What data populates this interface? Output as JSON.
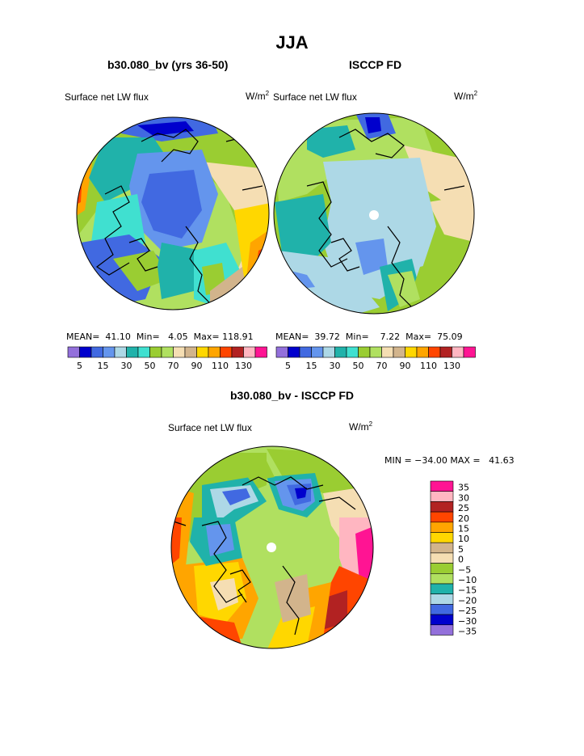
{
  "title": "JJA",
  "panels": [
    {
      "subtitle": "b30.080_bv (yrs 36-50)",
      "left_label": "Surface net LW flux",
      "units_base": "W/m",
      "units_exp": "2",
      "stats": {
        "mean_label": "MEAN=",
        "mean": "41.10",
        "min_label": "Min=",
        "min": "4.05",
        "max_label": "Max=",
        "max": "118.91"
      }
    },
    {
      "subtitle": "ISCCP FD",
      "left_label": "Surface net LW flux",
      "units_base": "W/m",
      "units_exp": "2",
      "stats": {
        "mean_label": "MEAN=",
        "mean": "39.72",
        "min_label": "Min=",
        "min": "7.22",
        "max_label": "Max=",
        "max": "75.09"
      }
    }
  ],
  "horizontal_colorbar": {
    "colors": [
      "#9370db",
      "#0000cd",
      "#4169e1",
      "#6495ed",
      "#add8e6",
      "#20b2aa",
      "#40e0d0",
      "#9acd32",
      "#b0e060",
      "#f5deb3",
      "#d2b48c",
      "#ffd700",
      "#ffa500",
      "#ff4500",
      "#b22222",
      "#ffb6c1",
      "#ff1493"
    ],
    "labels": [
      "5",
      "15",
      "30",
      "50",
      "70",
      "90",
      "110",
      "130"
    ]
  },
  "diff_panel": {
    "subtitle": "b30.080_bv - ISCCP FD",
    "left_label": "Surface net LW flux",
    "units_base": "W/m",
    "units_exp": "2",
    "minmax": "MIN = −34.00 MAX =   41.63"
  },
  "vertical_colorbar": {
    "colors": [
      "#ff1493",
      "#ffb6c1",
      "#b22222",
      "#ff4500",
      "#ffa500",
      "#ffd700",
      "#d2b48c",
      "#f5deb3",
      "#9acd32",
      "#b0e060",
      "#20b2aa",
      "#add8e6",
      "#4169e1",
      "#0000cd",
      "#9370db"
    ],
    "labels": [
      "35",
      "30",
      "25",
      "20",
      "15",
      "10",
      "5",
      "0",
      "−5",
      "−10",
      "−15",
      "−20",
      "−25",
      "−30",
      "−35"
    ]
  }
}
